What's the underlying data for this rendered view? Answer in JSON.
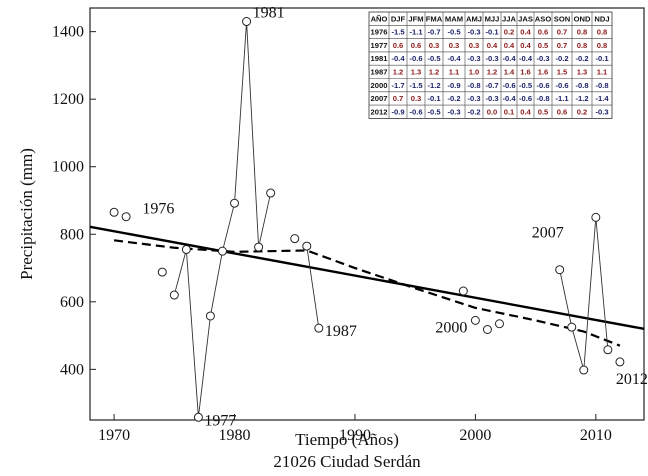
{
  "chart_data": {
    "type": "scatter",
    "title": "",
    "subtitle": "21026 Ciudad Serdán",
    "xlabel": "Tiempo (Años)",
    "ylabel": "Precipitación (mm)",
    "xlim": [
      1968,
      2014
    ],
    "ylim": [
      250,
      1470
    ],
    "x_ticks": [
      1970,
      1980,
      1990,
      2000,
      2010
    ],
    "y_ticks": [
      400,
      600,
      800,
      1000,
      1200,
      1400
    ],
    "grid": false,
    "legend": "none",
    "series": [
      {
        "kind": "observations",
        "points": [
          {
            "x": 1970,
            "y": 865
          },
          {
            "x": 1971,
            "y": 852
          },
          {
            "x": 1974,
            "y": 688
          },
          {
            "x": 1975,
            "y": 620
          },
          {
            "x": 1976,
            "y": 755
          },
          {
            "x": 1977,
            "y": 258
          },
          {
            "x": 1978,
            "y": 558
          },
          {
            "x": 1979,
            "y": 750
          },
          {
            "x": 1980,
            "y": 892
          },
          {
            "x": 1981,
            "y": 1430
          },
          {
            "x": 1982,
            "y": 762
          },
          {
            "x": 1983,
            "y": 922
          },
          {
            "x": 1985,
            "y": 787
          },
          {
            "x": 1986,
            "y": 765
          },
          {
            "x": 1987,
            "y": 522
          },
          {
            "x": 1999,
            "y": 632
          },
          {
            "x": 2000,
            "y": 545
          },
          {
            "x": 2001,
            "y": 518
          },
          {
            "x": 2002,
            "y": 535
          },
          {
            "x": 2007,
            "y": 695
          },
          {
            "x": 2008,
            "y": 525
          },
          {
            "x": 2009,
            "y": 398
          },
          {
            "x": 2010,
            "y": 850
          },
          {
            "x": 2011,
            "y": 458
          },
          {
            "x": 2012,
            "y": 422
          }
        ]
      },
      {
        "kind": "linear-trend",
        "points": [
          {
            "x": 1968,
            "y": 822
          },
          {
            "x": 2014,
            "y": 520
          }
        ]
      },
      {
        "kind": "smoothed-trend",
        "points": [
          {
            "x": 1970,
            "y": 782
          },
          {
            "x": 1975,
            "y": 760
          },
          {
            "x": 1980,
            "y": 748
          },
          {
            "x": 1986,
            "y": 752
          },
          {
            "x": 1990,
            "y": 700
          },
          {
            "x": 1995,
            "y": 640
          },
          {
            "x": 2000,
            "y": 582
          },
          {
            "x": 2005,
            "y": 545
          },
          {
            "x": 2009,
            "y": 512
          },
          {
            "x": 2012,
            "y": 470
          }
        ]
      }
    ],
    "annotations": [
      {
        "text": "1976",
        "x": 1976,
        "y": 755,
        "segment_from": [
          1975.3,
          800
        ]
      },
      {
        "text": "1977",
        "x": 1977,
        "y": 258,
        "segment_from": [
          1978.1,
          265
        ]
      },
      {
        "text": "1981",
        "x": 1981,
        "y": 1430,
        "segment_from": [
          1981.5,
          1432
        ]
      },
      {
        "text": "1987",
        "x": 1987,
        "y": 522,
        "segment_from": [
          1987,
          522
        ]
      },
      {
        "text": "2000",
        "x": 2000,
        "y": 545,
        "segment_from": [
          2000,
          545
        ]
      },
      {
        "text": "2007",
        "x": 2007,
        "y": 695,
        "segment_from": [
          2007,
          695
        ]
      },
      {
        "text": "2012",
        "x": 2012,
        "y": 422,
        "segment_from": [
          2012,
          422
        ]
      }
    ],
    "inset_table": {
      "headers": [
        "AÑO",
        "DJF",
        "JFM",
        "FMA",
        "MAM",
        "AMJ",
        "MJJ",
        "JJA",
        "JAS",
        "ASO",
        "SON",
        "OND",
        "NDJ"
      ],
      "rows": [
        {
          "year": "1976",
          "values": [
            "-1.5",
            "-1.1",
            "-0.7",
            "-0.5",
            "-0.3",
            "-0.1",
            "0.2",
            "0.4",
            "0.6",
            "0.7",
            "0.8",
            "0.8"
          ]
        },
        {
          "year": "1977",
          "values": [
            "0.6",
            "0.6",
            "0.3",
            "0.3",
            "0.3",
            "0.4",
            "0.4",
            "0.4",
            "0.5",
            "0.7",
            "0.8",
            "0.8"
          ]
        },
        {
          "year": "1981",
          "values": [
            "-0.4",
            "-0.6",
            "-0.5",
            "-0.4",
            "-0.3",
            "-0.3",
            "-0.4",
            "-0.4",
            "-0.3",
            "-0.2",
            "-0.2",
            "-0.1"
          ]
        },
        {
          "year": "1987",
          "values": [
            "1.2",
            "1.3",
            "1.2",
            "1.1",
            "1.0",
            "1.2",
            "1.4",
            "1.6",
            "1.6",
            "1.5",
            "1.3",
            "1.1"
          ]
        },
        {
          "year": "2000",
          "values": [
            "-1.7",
            "-1.5",
            "-1.2",
            "-0.9",
            "-0.8",
            "-0.7",
            "-0.6",
            "-0.5",
            "-0.6",
            "-0.6",
            "-0.8",
            "-0.8"
          ]
        },
        {
          "year": "2007",
          "values": [
            "0.7",
            "0.3",
            "-0.1",
            "-0.2",
            "-0.3",
            "-0.3",
            "-0.4",
            "-0.6",
            "-0.8",
            "-1.1",
            "-1.2",
            "-1.4"
          ]
        },
        {
          "year": "2012",
          "values": [
            "-0.9",
            "-0.6",
            "-0.5",
            "-0.3",
            "-0.2",
            "0.0",
            "0.1",
            "0.4",
            "0.5",
            "0.6",
            "0.2",
            "-0.3"
          ]
        }
      ],
      "colors": {
        "positive": "#8b1a1a",
        "negative": "#1a1f66",
        "header": "#111111"
      }
    }
  }
}
